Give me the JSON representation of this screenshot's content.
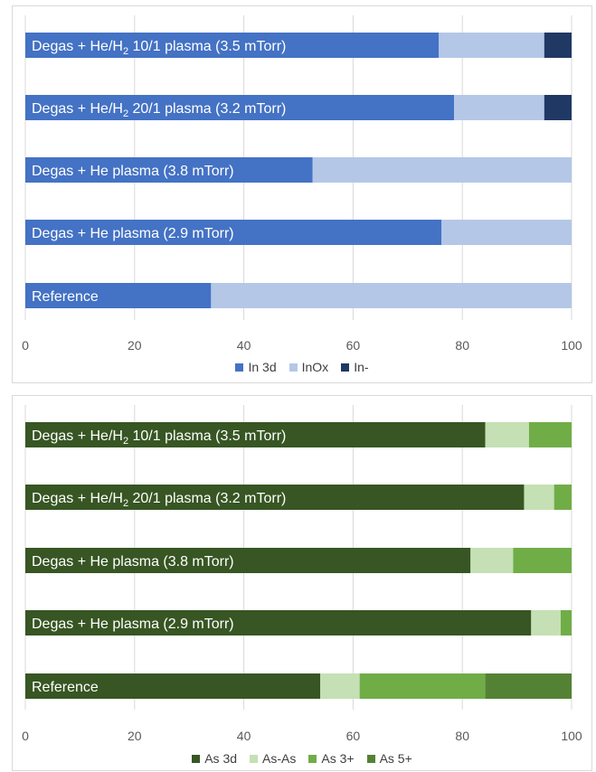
{
  "chart_data": [
    {
      "type": "bar",
      "orientation": "horizontal",
      "stacked": true,
      "categories": [
        {
          "pre": "Degas + He/H",
          "sub": "2",
          "post": " 10/1 plasma (3.5 mTorr)"
        },
        {
          "pre": "Degas + He/H",
          "sub": "2",
          "post": " 20/1 plasma (3.2 mTorr)"
        },
        {
          "pre": "Degas + He plasma (3.8 mTorr)",
          "sub": "",
          "post": ""
        },
        {
          "pre": "Degas + He plasma (2.9 mTorr)",
          "sub": "",
          "post": ""
        },
        {
          "pre": "Reference",
          "sub": "",
          "post": ""
        }
      ],
      "series": [
        {
          "name": "In 3d",
          "color": "#4472c4",
          "values": [
            75.7,
            78.5,
            52.6,
            76.2,
            34.0
          ]
        },
        {
          "name": "InOx",
          "color": "#b4c7e7",
          "values": [
            19.3,
            16.5,
            47.4,
            23.8,
            66.0
          ]
        },
        {
          "name": "In-",
          "color": "#203864",
          "values": [
            5.0,
            5.0,
            0,
            0,
            0
          ]
        }
      ],
      "xlim": [
        0,
        100
      ],
      "xticks": [
        "0",
        "20",
        "40",
        "60",
        "80",
        "100"
      ],
      "grid": true,
      "legend_position": "bottom"
    },
    {
      "type": "bar",
      "orientation": "horizontal",
      "stacked": true,
      "categories": [
        {
          "pre": "Degas + He/H",
          "sub": "2",
          "post": " 10/1 plasma (3.5 mTorr)"
        },
        {
          "pre": "Degas + He/H",
          "sub": "2",
          "post": " 20/1 plasma (3.2 mTorr)"
        },
        {
          "pre": "Degas + He plasma (3.8 mTorr)",
          "sub": "",
          "post": ""
        },
        {
          "pre": "Degas + He plasma (2.9 mTorr)",
          "sub": "",
          "post": ""
        },
        {
          "pre": "Reference",
          "sub": "",
          "post": ""
        }
      ],
      "series": [
        {
          "name": "As 3d",
          "color": "#375623",
          "values": [
            84.2,
            91.3,
            81.5,
            92.6,
            54.0
          ]
        },
        {
          "name": "As-As",
          "color": "#c5e0b4",
          "values": [
            8.0,
            5.5,
            7.8,
            5.4,
            7.2
          ]
        },
        {
          "name": "As 3+",
          "color": "#70ad47",
          "values": [
            7.8,
            3.2,
            10.7,
            2.0,
            23.0
          ]
        },
        {
          "name": "As 5+",
          "color": "#548235",
          "values": [
            0,
            0,
            0,
            0,
            15.8
          ]
        }
      ],
      "xlim": [
        0,
        100
      ],
      "xticks": [
        "0",
        "20",
        "40",
        "60",
        "80",
        "100"
      ],
      "grid": true,
      "legend_position": "bottom"
    }
  ]
}
